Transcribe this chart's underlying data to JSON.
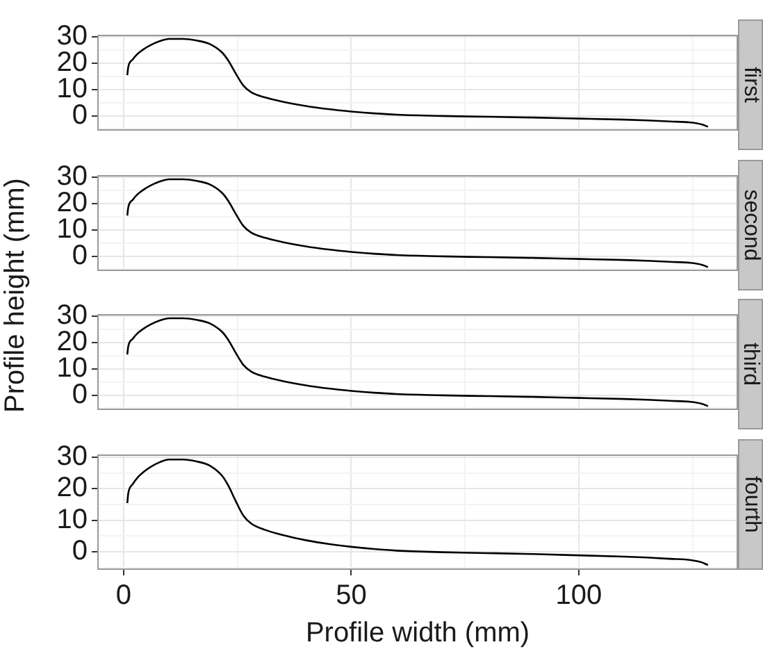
{
  "chart_data": [
    {
      "type": "line",
      "title": "first",
      "ylabel": "Profile height (mm)",
      "x": [
        0.8,
        1,
        2,
        3,
        4.5,
        6,
        8,
        10,
        13,
        16,
        19,
        21.7,
        23,
        24.5,
        26.3,
        28,
        31,
        35,
        40,
        45,
        50,
        55,
        60,
        70,
        80,
        90,
        100,
        110,
        115,
        120,
        124.6,
        127,
        128.4
      ],
      "series": [
        {
          "color": "#000000",
          "values": [
            15.5,
            18.5,
            21.5,
            23.5,
            25.5,
            27,
            28.5,
            29.3,
            29.3,
            28.7,
            27.3,
            24,
            21,
            16.5,
            11.5,
            9,
            7,
            5.3,
            3.7,
            2.5,
            1.6,
            0.9,
            0.4,
            -0.1,
            -0.4,
            -0.7,
            -1.1,
            -1.5,
            -1.8,
            -2.2,
            -2.6,
            -3.3,
            -4.2
          ]
        }
      ],
      "xlim": [
        -5.8,
        135
      ],
      "ylim": [
        -5.7,
        30.9
      ],
      "xticks": [
        0,
        {
          "value": 25,
          "label": null
        },
        50,
        {
          "value": 75,
          "label": null
        },
        100,
        {
          "value": 125,
          "label": null
        }
      ],
      "yticks": [
        {
          "value": -5,
          "label": null
        },
        0,
        {
          "value": 5,
          "label": null
        },
        10,
        {
          "value": 15,
          "label": null
        },
        20,
        {
          "value": 25,
          "label": null
        },
        30
      ],
      "grid": true,
      "tick_labels": "y"
    },
    {
      "type": "line",
      "title": "second",
      "x": [
        0.8,
        1,
        2,
        3,
        4.5,
        6,
        8,
        10,
        13,
        16,
        19,
        21.7,
        23,
        24.5,
        26.3,
        28,
        31,
        35,
        40,
        45,
        50,
        55,
        60,
        70,
        80,
        90,
        100,
        110,
        115,
        120,
        124.6,
        127,
        128.4
      ],
      "series": [
        {
          "color": "#000000",
          "values": [
            15.5,
            18.5,
            21.5,
            23.5,
            25.5,
            27,
            28.5,
            29.3,
            29.3,
            28.7,
            27.3,
            24,
            21,
            16.5,
            11.5,
            9,
            7,
            5.3,
            3.7,
            2.5,
            1.6,
            0.9,
            0.4,
            -0.1,
            -0.4,
            -0.7,
            -1.1,
            -1.5,
            -1.8,
            -2.2,
            -2.6,
            -3.3,
            -4.2
          ]
        }
      ],
      "xlim": [
        -5.8,
        135
      ],
      "ylim": [
        -5.7,
        30.9
      ],
      "xticks": [
        0,
        {
          "value": 25,
          "label": null
        },
        50,
        {
          "value": 75,
          "label": null
        },
        100,
        {
          "value": 125,
          "label": null
        }
      ],
      "yticks": [
        {
          "value": -5,
          "label": null
        },
        0,
        {
          "value": 5,
          "label": null
        },
        10,
        {
          "value": 15,
          "label": null
        },
        20,
        {
          "value": 25,
          "label": null
        },
        30
      ],
      "grid": true,
      "tick_labels": "y"
    },
    {
      "type": "line",
      "title": "third",
      "x": [
        0.8,
        1,
        2,
        3,
        4.5,
        6,
        8,
        10,
        13,
        16,
        19,
        21.7,
        23,
        24.5,
        26.3,
        28,
        31,
        35,
        40,
        45,
        50,
        55,
        60,
        70,
        80,
        90,
        100,
        110,
        115,
        120,
        124.6,
        127,
        128.4
      ],
      "series": [
        {
          "color": "#000000",
          "values": [
            15.5,
            18.5,
            21.5,
            23.5,
            25.5,
            27,
            28.5,
            29.3,
            29.3,
            28.7,
            27.3,
            24,
            21,
            16.5,
            11.5,
            9,
            7,
            5.3,
            3.7,
            2.5,
            1.6,
            0.9,
            0.4,
            -0.1,
            -0.4,
            -0.7,
            -1.1,
            -1.5,
            -1.8,
            -2.2,
            -2.6,
            -3.3,
            -4.2
          ]
        }
      ],
      "xlim": [
        -5.8,
        135
      ],
      "ylim": [
        -5.7,
        30.9
      ],
      "xticks": [
        0,
        {
          "value": 25,
          "label": null
        },
        50,
        {
          "value": 75,
          "label": null
        },
        100,
        {
          "value": 125,
          "label": null
        }
      ],
      "yticks": [
        {
          "value": -5,
          "label": null
        },
        0,
        {
          "value": 5,
          "label": null
        },
        10,
        {
          "value": 15,
          "label": null
        },
        20,
        {
          "value": 25,
          "label": null
        },
        30
      ],
      "grid": true,
      "tick_labels": "y"
    },
    {
      "type": "line",
      "title": "fourth",
      "xlabel": "Profile width (mm)",
      "x": [
        0.8,
        1,
        2,
        3,
        4.5,
        6,
        8,
        10,
        13,
        16,
        19,
        21.7,
        23,
        24.5,
        26.3,
        28,
        31,
        35,
        40,
        45,
        50,
        55,
        60,
        70,
        80,
        90,
        100,
        110,
        115,
        120,
        124.6,
        127,
        128.4
      ],
      "series": [
        {
          "color": "#000000",
          "values": [
            15.5,
            18.5,
            21.5,
            23.5,
            25.5,
            27,
            28.5,
            29.3,
            29.3,
            28.7,
            27.3,
            24,
            21,
            16.5,
            11.5,
            9,
            7,
            5.3,
            3.7,
            2.5,
            1.6,
            0.9,
            0.4,
            -0.1,
            -0.4,
            -0.7,
            -1.1,
            -1.5,
            -1.8,
            -2.2,
            -2.6,
            -3.3,
            -4.2
          ]
        }
      ],
      "xlim": [
        -5.8,
        135
      ],
      "ylim": [
        -5.7,
        30.9
      ],
      "xticks": [
        0,
        {
          "value": 25,
          "label": null
        },
        50,
        {
          "value": 75,
          "label": null
        },
        100,
        {
          "value": 125,
          "label": null
        }
      ],
      "yticks": [
        {
          "value": -5,
          "label": null
        },
        0,
        {
          "value": 5,
          "label": null
        },
        10,
        {
          "value": 15,
          "label": null
        },
        20,
        {
          "value": 25,
          "label": null
        },
        30
      ],
      "grid": true
    }
  ]
}
